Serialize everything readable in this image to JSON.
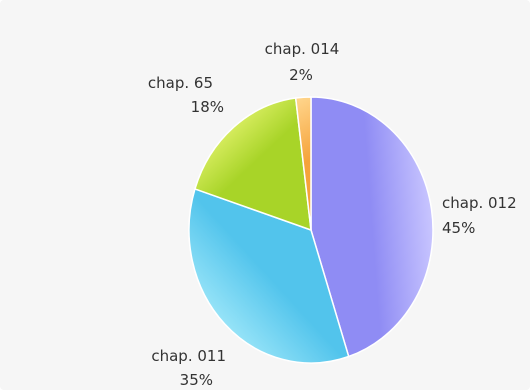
{
  "chart_data": {
    "type": "pie",
    "title": "",
    "slices": [
      {
        "label": "chap. 012",
        "value": 45,
        "value_text": "45%",
        "color_light": "#c9c6ff",
        "color_dark": "#8f8cf4"
      },
      {
        "label": "chap. 011",
        "value": 35,
        "value_text": "35%",
        "color_light": "#a9ecfb",
        "color_dark": "#52c4ec"
      },
      {
        "label": "chap. 65",
        "value": 18,
        "value_text": "18%",
        "color_light": "#eef87a",
        "color_dark": "#a8d428"
      },
      {
        "label": "chap. 014",
        "value": 2,
        "value_text": "2%",
        "color_light": "#ffd48a",
        "color_dark": "#f5a33a"
      }
    ],
    "legend": "none",
    "label_style": "outside"
  }
}
